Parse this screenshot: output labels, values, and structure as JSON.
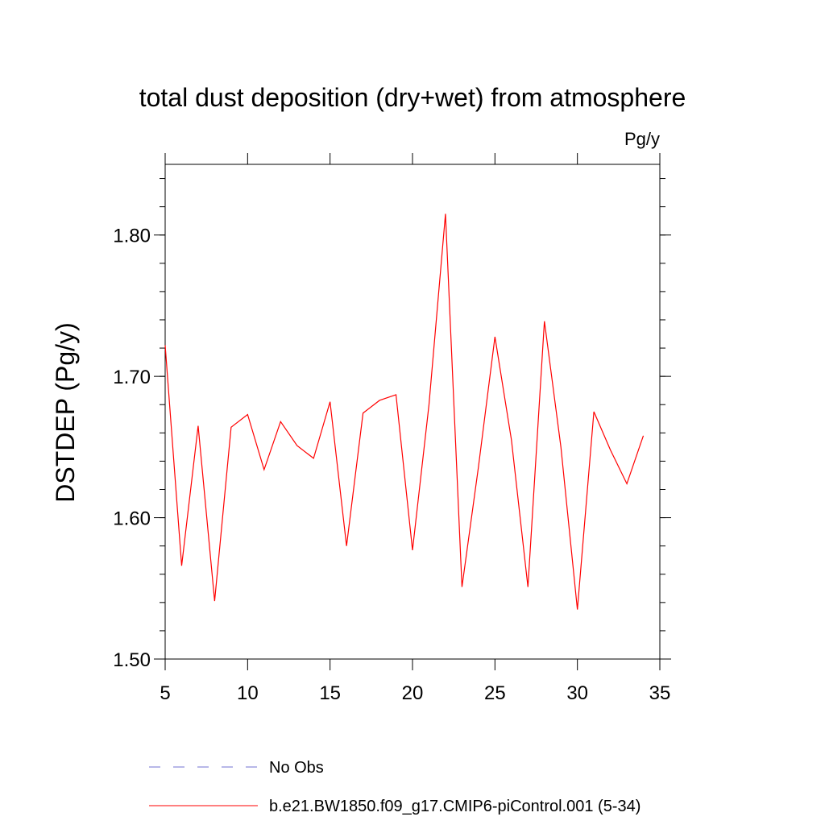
{
  "chart_data": {
    "type": "line",
    "title": "total dust deposition (dry+wet) from atmosphere",
    "units_label": "Pg/y",
    "ylabel": "DSTDEP  (Pg/y)",
    "xlabel": "",
    "xlim": [
      5,
      35
    ],
    "ylim": [
      1.5,
      1.85
    ],
    "x_ticks": [
      5,
      10,
      15,
      20,
      25,
      30,
      35
    ],
    "x_tick_labels": [
      "5",
      "10",
      "15",
      "20",
      "25",
      "30",
      "35"
    ],
    "y_ticks": [
      1.5,
      1.6,
      1.7,
      1.8
    ],
    "y_tick_labels": [
      "1.50",
      "1.60",
      "1.70",
      "1.80"
    ],
    "grid": false,
    "legend_position": "bottom",
    "series": [
      {
        "name": "b.e21.BW1850.f09_g17.CMIP6-piControl.001 (5-34)",
        "color": "#ff0000",
        "style": "solid",
        "x": [
          5,
          6,
          7,
          8,
          9,
          10,
          11,
          12,
          13,
          14,
          15,
          16,
          17,
          18,
          19,
          20,
          21,
          22,
          23,
          24,
          25,
          26,
          27,
          28,
          29,
          30,
          31,
          32,
          33,
          34
        ],
        "y": [
          1.722,
          1.566,
          1.665,
          1.541,
          1.664,
          1.673,
          1.634,
          1.668,
          1.651,
          1.642,
          1.682,
          1.58,
          1.674,
          1.683,
          1.687,
          1.577,
          1.68,
          1.815,
          1.551,
          1.636,
          1.728,
          1.655,
          1.551,
          1.739,
          1.65,
          1.535,
          1.675,
          1.648,
          1.624,
          1.658
        ]
      },
      {
        "name": "No Obs",
        "color": "#7070d0",
        "style": "dashed",
        "x": [],
        "y": []
      }
    ]
  }
}
